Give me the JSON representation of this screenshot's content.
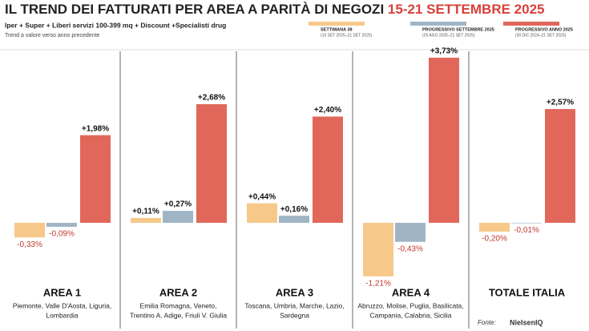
{
  "chart_data": {
    "type": "bar",
    "title": "IL TREND DEI FATTURATI PER AREA A PARITÀ DI NEGOZI",
    "title_highlight": "15-21 SETTEMBRE 2025",
    "subtitle": "Iper + Super + Liberi servizi 100-399 mq + Discount +Specialisti drug",
    "note": "Trend a valore verso anno precedente",
    "source_label": "Fonte:",
    "source": "NielsenIQ",
    "categories": [
      "AREA 1",
      "AREA 2",
      "AREA 3",
      "AREA 4",
      "TOTALE ITALIA"
    ],
    "descriptions": [
      [
        "Piemonte, Valle D'Aosta, Liguria,",
        "Lombardia"
      ],
      [
        "Emilia Romagna, Veneto,",
        "Trentino A. Adige, Friuli V. Giulia"
      ],
      [
        "Toscana, Umbria, Marche, Lazio,",
        "Sardegna"
      ],
      [
        "Abruzzo, Molise, Puglia, Basilicata,",
        "Campania, Calabria, Sicilia"
      ],
      []
    ],
    "series": [
      {
        "name": "SETTIMANA 38",
        "period": "(15 SET 2025–21 SET 2025)",
        "color": "#f6c98b",
        "values": [
          -0.33,
          0.11,
          0.44,
          -1.21,
          -0.2
        ],
        "value_labels": [
          "-0,33%",
          "+0,11%",
          "+0,44%",
          "-1,21%",
          "-0,20%"
        ]
      },
      {
        "name": "PROGRESSIVO SETTEMBRE 2025",
        "period": "(25 AGO 2025–21 SET 2025)",
        "color": "#9fb5c6",
        "values": [
          -0.09,
          0.27,
          0.16,
          -0.43,
          -0.01
        ],
        "value_labels": [
          "-0,09%",
          "+0,27%",
          "+0,16%",
          "-0,43%",
          "-0,01%"
        ]
      },
      {
        "name": "PROGRESSIVO ANNO 2025",
        "period": "(30 DIC 2024–21 SET 2025)",
        "color": "#e1675b",
        "values": [
          1.98,
          2.68,
          2.4,
          3.73,
          2.57
        ],
        "value_labels": [
          "+1,98%",
          "+2,68%",
          "+2,40%",
          "+3,73%",
          "+2,57%"
        ]
      }
    ]
  }
}
